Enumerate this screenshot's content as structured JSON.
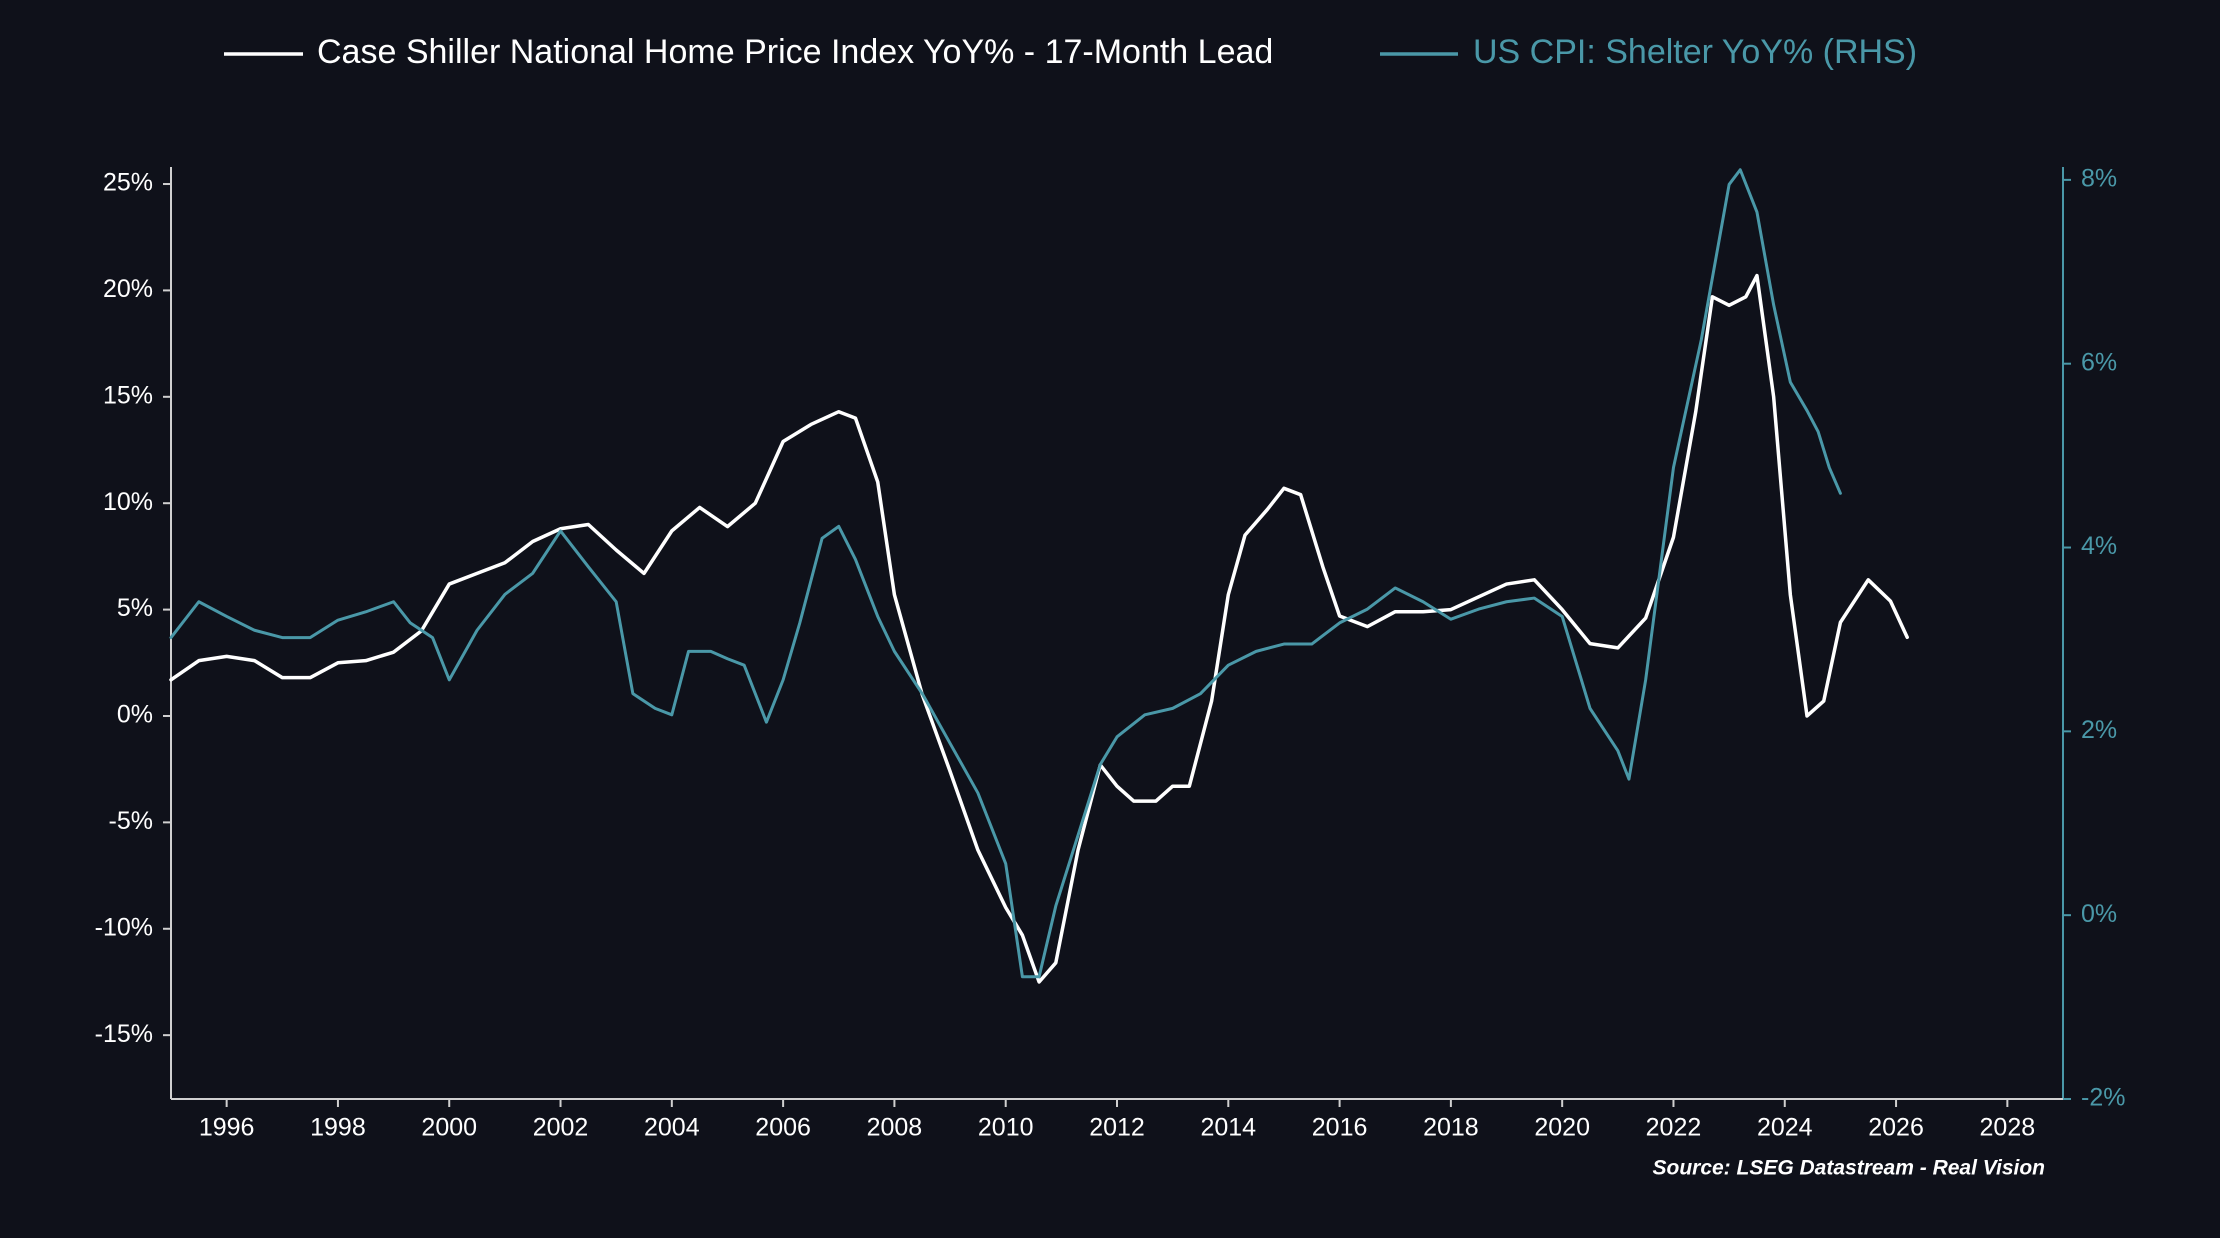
{
  "chart_data": {
    "type": "line",
    "legend": "top",
    "grid": false,
    "source": "Source: LSEG Datastream - Real Vision",
    "xlim": [
      1995,
      2029
    ],
    "xticks": [
      1996,
      1998,
      2000,
      2002,
      2004,
      2006,
      2008,
      2010,
      2012,
      2014,
      2016,
      2018,
      2020,
      2022,
      2024,
      2026,
      2028
    ],
    "ylim": [
      -18,
      25.8
    ],
    "yticks": [
      {
        "value": -15,
        "label": "-15%"
      },
      {
        "value": -10,
        "label": "-10%"
      },
      {
        "value": -5,
        "label": "-5%"
      },
      {
        "value": 0,
        "label": "0%"
      },
      {
        "value": 5,
        "label": "5%"
      },
      {
        "value": 10,
        "label": "10%"
      },
      {
        "value": 15,
        "label": "15%"
      },
      {
        "value": 20,
        "label": "20%"
      },
      {
        "value": 25,
        "label": "25%"
      }
    ],
    "y2lim": [
      -2,
      8.14
    ],
    "y2ticks": [
      {
        "value": -2,
        "label": "-2%"
      },
      {
        "value": 0,
        "label": "0%"
      },
      {
        "value": 2,
        "label": "2%"
      },
      {
        "value": 4,
        "label": "4%"
      },
      {
        "value": 6,
        "label": "6%"
      },
      {
        "value": 8,
        "label": "8%"
      }
    ],
    "series": [
      {
        "name": "Case Shiller National Home Price Index YoY% - 17-Month Lead",
        "color": "#ffffff",
        "axis": "y",
        "x": [
          1995,
          1995.5,
          1996,
          1996.5,
          1997,
          1997.5,
          1998,
          1998.5,
          1999,
          1999.5,
          2000,
          2000.5,
          2001,
          2001.5,
          2002,
          2002.5,
          2003,
          2003.5,
          2004,
          2004.5,
          2005,
          2005.5,
          2006,
          2006.5,
          2007,
          2007.3,
          2007.7,
          2008,
          2008.5,
          2009,
          2009.5,
          2010,
          2010.3,
          2010.6,
          2010.9,
          2011.3,
          2011.7,
          2012,
          2012.3,
          2012.7,
          2013,
          2013.3,
          2013.7,
          2014,
          2014.3,
          2014.7,
          2015,
          2015.3,
          2015.7,
          2016,
          2016.5,
          2017,
          2017.5,
          2018,
          2018.5,
          2019,
          2019.5,
          2020,
          2020.5,
          2021,
          2021.5,
          2022,
          2022.4,
          2022.7,
          2023,
          2023.3,
          2023.5,
          2023.8,
          2024.1,
          2024.4,
          2024.7,
          2025,
          2025.5,
          2025.9,
          2026.2
        ],
        "values": [
          1.7,
          2.6,
          2.8,
          2.6,
          1.8,
          1.8,
          2.5,
          2.6,
          3.0,
          4.0,
          6.2,
          6.7,
          7.2,
          8.2,
          8.8,
          9.0,
          7.8,
          6.7,
          8.7,
          9.8,
          8.9,
          10.0,
          12.9,
          13.7,
          14.3,
          14.0,
          11.0,
          5.7,
          1.0,
          -2.6,
          -6.3,
          -9.0,
          -10.3,
          -12.5,
          -11.6,
          -6.3,
          -2.3,
          -3.3,
          -4.0,
          -4.0,
          -3.3,
          -3.3,
          0.7,
          5.7,
          8.5,
          9.7,
          10.7,
          10.4,
          7.0,
          4.7,
          4.2,
          4.9,
          4.9,
          5.0,
          5.6,
          6.2,
          6.4,
          5.0,
          3.4,
          3.2,
          4.6,
          8.4,
          14.3,
          19.7,
          19.3,
          19.7,
          20.7,
          15.0,
          5.7,
          0.0,
          0.7,
          4.4,
          6.4,
          5.4,
          3.7
        ]
      },
      {
        "name": "US CPI: Shelter YoY% (RHS)",
        "color": "#4a98a8",
        "axis": "y2",
        "x": [
          1995,
          1995.5,
          1996,
          1996.5,
          1997,
          1997.5,
          1998,
          1998.5,
          1999,
          1999.3,
          1999.7,
          2000,
          2000.5,
          2001,
          2001.5,
          2002,
          2002.5,
          2003,
          2003.3,
          2003.7,
          2004,
          2004.3,
          2004.7,
          2005,
          2005.3,
          2005.7,
          2006,
          2006.3,
          2006.7,
          2007,
          2007.3,
          2007.7,
          2008,
          2008.5,
          2009,
          2009.5,
          2010,
          2010.3,
          2010.6,
          2010.9,
          2011.3,
          2011.7,
          2012,
          2012.5,
          2013,
          2013.5,
          2014,
          2014.5,
          2015,
          2015.5,
          2016,
          2016.5,
          2017,
          2017.5,
          2018,
          2018.5,
          2019,
          2019.5,
          2020,
          2020.5,
          2021,
          2021.2,
          2021.5,
          2022,
          2022.5,
          2023,
          2023.2,
          2023.5,
          2023.8,
          2024.1,
          2024.4,
          2024.6,
          2024.8,
          2025
        ],
        "values": [
          3.02,
          3.41,
          3.25,
          3.1,
          3.02,
          3.02,
          3.21,
          3.3,
          3.41,
          3.18,
          3.02,
          2.56,
          3.1,
          3.49,
          3.72,
          4.18,
          3.79,
          3.41,
          2.41,
          2.25,
          2.18,
          2.87,
          2.87,
          2.79,
          2.72,
          2.1,
          2.56,
          3.18,
          4.1,
          4.23,
          3.87,
          3.25,
          2.87,
          2.41,
          1.87,
          1.33,
          0.56,
          -0.67,
          -0.67,
          0.1,
          0.87,
          1.64,
          1.94,
          2.18,
          2.25,
          2.41,
          2.72,
          2.87,
          2.95,
          2.95,
          3.18,
          3.33,
          3.56,
          3.41,
          3.22,
          3.33,
          3.41,
          3.45,
          3.25,
          2.25,
          1.79,
          1.48,
          2.56,
          4.87,
          6.26,
          7.95,
          8.11,
          7.65,
          6.64,
          5.8,
          5.49,
          5.26,
          4.87,
          4.59
        ]
      }
    ]
  }
}
